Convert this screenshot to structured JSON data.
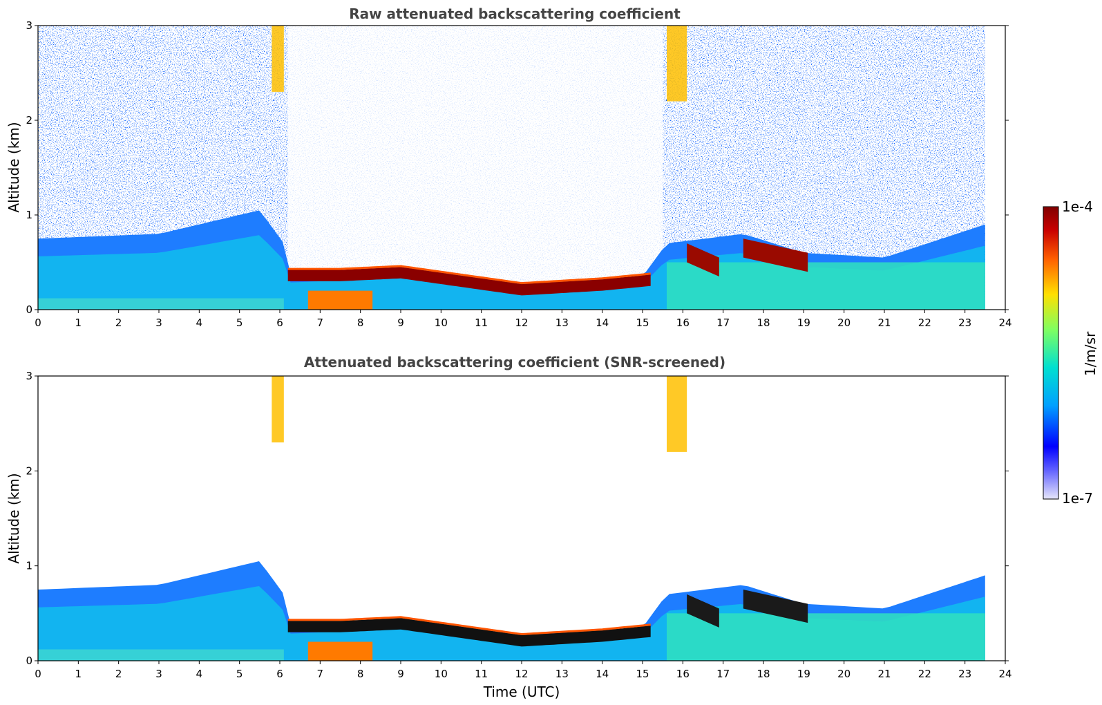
{
  "chart_data": [
    {
      "type": "heatmap",
      "title": "Raw attenuated backscattering coefficient",
      "xlabel": "",
      "ylabel": "Altitude (km)",
      "xlim": [
        0,
        24
      ],
      "ylim": [
        0,
        3
      ],
      "xticks": [
        "0",
        "1",
        "2",
        "3",
        "4",
        "5",
        "6",
        "7",
        "8",
        "9",
        "10",
        "11",
        "12",
        "13",
        "14",
        "15",
        "16",
        "17",
        "18",
        "19",
        "20",
        "21",
        "22",
        "23",
        "24"
      ],
      "yticks": [
        "0",
        "1",
        "2",
        "3"
      ],
      "data_end_hour": 23.5,
      "screened": false,
      "layers": {
        "boundary_layer_top_km": [
          {
            "t": 0,
            "h": 0.75
          },
          {
            "t": 3,
            "h": 0.8
          },
          {
            "t": 5.5,
            "h": 1.05
          },
          {
            "t": 6.1,
            "h": 0.7
          },
          {
            "t": 6.2,
            "h": 0.38
          },
          {
            "t": 9,
            "h": 0.45
          },
          {
            "t": 12,
            "h": 0.28
          },
          {
            "t": 15,
            "h": 0.35
          },
          {
            "t": 15.6,
            "h": 0.7
          },
          {
            "t": 17.5,
            "h": 0.8
          },
          {
            "t": 19,
            "h": 0.6
          },
          {
            "t": 21,
            "h": 0.55
          },
          {
            "t": 23.5,
            "h": 0.9
          }
        ],
        "cloud_base_km": [
          {
            "t": 6.2,
            "h": 0.3
          },
          {
            "t": 7.5,
            "h": 0.3
          },
          {
            "t": 9,
            "h": 0.33
          },
          {
            "t": 12,
            "h": 0.15
          },
          {
            "t": 14,
            "h": 0.2
          },
          {
            "t": 15.2,
            "h": 0.25
          }
        ],
        "cirrus_segments": [
          {
            "t_start": 5.8,
            "t_end": 6.1,
            "h_bottom": 2.3,
            "h_top": 3.0
          },
          {
            "t_start": 15.6,
            "t_end": 16.1,
            "h_bottom": 2.2,
            "h_top": 3.0
          }
        ]
      }
    },
    {
      "type": "heatmap",
      "title": "Attenuated backscattering coefficient (SNR-screened)",
      "xlabel": "Time (UTC)",
      "ylabel": "Altitude (km)",
      "xlim": [
        0,
        24
      ],
      "ylim": [
        0,
        3
      ],
      "xticks": [
        "0",
        "1",
        "2",
        "3",
        "4",
        "5",
        "6",
        "7",
        "8",
        "9",
        "10",
        "11",
        "12",
        "13",
        "14",
        "15",
        "16",
        "17",
        "18",
        "19",
        "20",
        "21",
        "22",
        "23",
        "24"
      ],
      "yticks": [
        "0",
        "1",
        "2",
        "3"
      ],
      "data_end_hour": 23.5,
      "screened": true
    }
  ],
  "colorbar": {
    "label": "1/m/sr",
    "max_label": "1e-4",
    "min_label": "1e-7",
    "min_value": 1e-07,
    "max_value": 0.0001,
    "colors": [
      "#e6e6fa",
      "#0000ff",
      "#00a0ff",
      "#00e8c8",
      "#80ff60",
      "#ffe000",
      "#ff6000",
      "#c00000",
      "#800000"
    ]
  }
}
